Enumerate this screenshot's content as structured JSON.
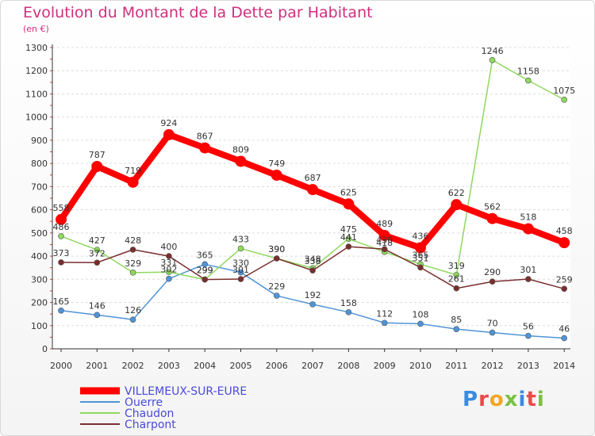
{
  "title": "Evolution du Montant de la Dette par Habitant",
  "subtitle": "(en €)",
  "logo": "Proxiti",
  "chart_data": {
    "type": "line",
    "title": "Evolution du Montant de la Dette par Habitant",
    "subtitle": "(en €)",
    "x": [
      "2000",
      "2001",
      "2002",
      "2003",
      "2004",
      "2005",
      "2006",
      "2007",
      "2008",
      "2009",
      "2010",
      "2011",
      "2012",
      "2013",
      "2014"
    ],
    "ylim": [
      0,
      1300
    ],
    "yticks": [
      0,
      100,
      200,
      300,
      400,
      500,
      600,
      700,
      800,
      900,
      1000,
      1100,
      1200,
      1300
    ],
    "grid": true,
    "legend_position": "bottom-left",
    "series": [
      {
        "name": "VILLEMEUX-SUR-EURE",
        "color": "#ff0000",
        "values": [
          558,
          787,
          719,
          924,
          867,
          809,
          749,
          687,
          625,
          489,
          436,
          622,
          562,
          518,
          458
        ]
      },
      {
        "name": "Ouerre",
        "color": "#4f94d8",
        "values": [
          165,
          146,
          126,
          302,
          365,
          330,
          229,
          192,
          158,
          112,
          108,
          85,
          70,
          56,
          46
        ]
      },
      {
        "name": "Chaudon",
        "color": "#8fd85e",
        "values": [
          486,
          427,
          329,
          331,
          299,
          433,
          390,
          348,
          475,
          418,
          365,
          319,
          1246,
          1158,
          1075
        ]
      },
      {
        "name": "Charpont",
        "color": "#7a2e2e",
        "values": [
          373,
          372,
          428,
          400,
          299,
          301,
          390,
          338,
          441,
          430,
          351,
          261,
          290,
          301,
          259
        ]
      }
    ]
  }
}
